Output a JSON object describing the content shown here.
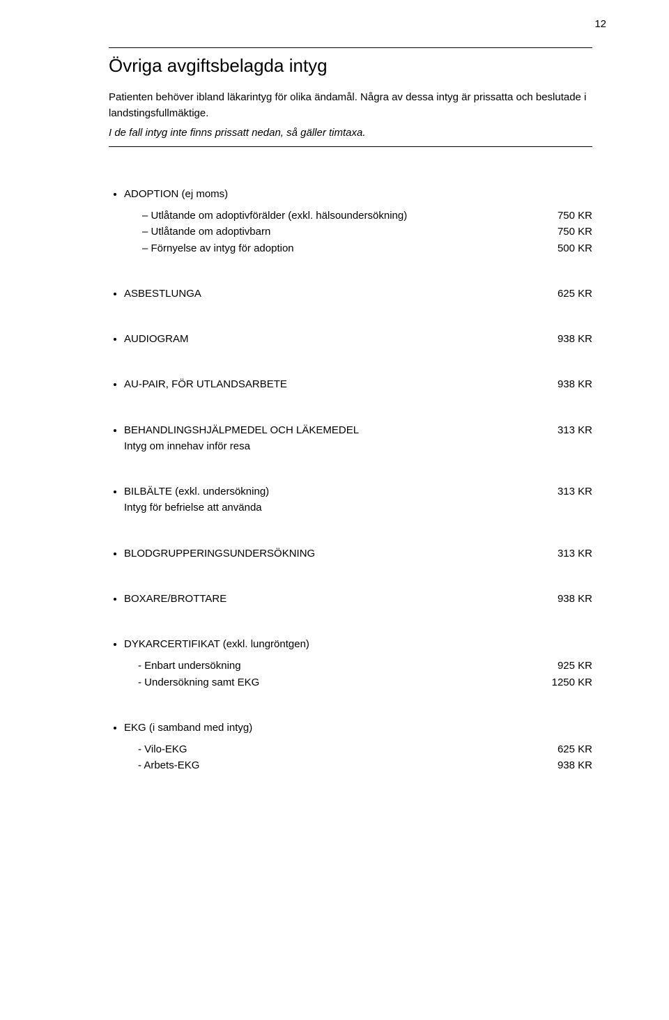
{
  "page_number": "12",
  "title": "Övriga avgiftsbelagda intyg",
  "intro_line1": "Patienten behöver ibland läkarintyg för olika ändamål. Några av dessa intyg är prissatta och beslutade i landstingsfullmäktige.",
  "intro_line2": "I de fall intyg inte finns prissatt nedan, så gäller timtaxa.",
  "items": [
    {
      "heading": "ADOPTION (ej moms)",
      "heading_price": "",
      "sublist_style": "dash",
      "subitems": [
        {
          "label": "Utlåtande om adoptivförälder (exkl. hälsoundersökning)",
          "price": "750 KR"
        },
        {
          "label": "Utlåtande om adoptivbarn",
          "price": "750 KR"
        },
        {
          "label": "Förnyelse av intyg för adoption",
          "price": "500 KR"
        }
      ]
    },
    {
      "heading": "ASBESTLUNGA",
      "heading_price": "625 KR"
    },
    {
      "heading": "AUDIOGRAM",
      "heading_price": "938 KR"
    },
    {
      "heading": "AU-PAIR, FÖR UTLANDSARBETE",
      "heading_price": "938 KR"
    },
    {
      "heading": "BEHANDLINGSHJÄLPMEDEL OCH LÄKEMEDEL",
      "heading_price": "313 KR",
      "subtext": "Intyg om innehav inför resa"
    },
    {
      "heading": "BILBÄLTE (exkl. undersökning)",
      "heading_price": "313 KR",
      "subtext": "Intyg för befrielse att använda"
    },
    {
      "heading": "BLODGRUPPERINGSUNDERSÖKNING",
      "heading_price": "313 KR"
    },
    {
      "heading": "BOXARE/BROTTARE",
      "heading_price": "938 KR"
    },
    {
      "heading": "DYKARCERTIFIKAT (exkl. lungröntgen)",
      "heading_price": "",
      "sublist_style": "plain",
      "subitems": [
        {
          "label": "Enbart undersökning",
          "price": "925 KR"
        },
        {
          "label": "Undersökning samt EKG",
          "price": "1250 KR"
        }
      ]
    },
    {
      "heading": "EKG (i samband med intyg)",
      "heading_price": "",
      "sublist_style": "plain",
      "subitems": [
        {
          "label": "Vilo-EKG",
          "price": "625 KR"
        },
        {
          "label": "Arbets-EKG",
          "price": "938 KR"
        }
      ]
    }
  ]
}
